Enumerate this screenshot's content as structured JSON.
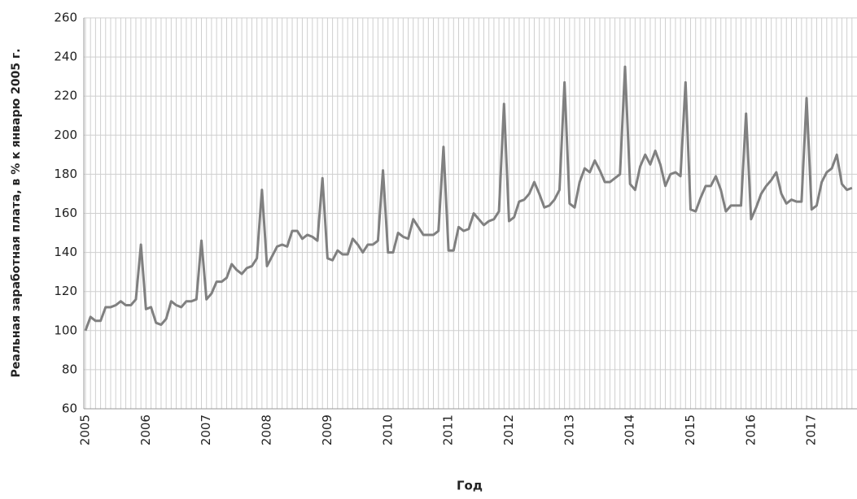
{
  "chart_data": {
    "type": "line",
    "y_label": "Реальная заработная плата, в % к январю 2005 г.",
    "x_label": "Год",
    "categories": [
      "2005",
      null,
      null,
      null,
      null,
      null,
      null,
      null,
      null,
      null,
      null,
      null,
      "2006",
      null,
      null,
      null,
      null,
      null,
      null,
      null,
      null,
      null,
      null,
      null,
      "2007",
      null,
      null,
      null,
      null,
      null,
      null,
      null,
      null,
      null,
      null,
      null,
      "2008",
      null,
      null,
      null,
      null,
      null,
      null,
      null,
      null,
      null,
      null,
      null,
      "2009",
      null,
      null,
      null,
      null,
      null,
      null,
      null,
      null,
      null,
      null,
      null,
      "2010",
      null,
      null,
      null,
      null,
      null,
      null,
      null,
      null,
      null,
      null,
      null,
      "2011",
      null,
      null,
      null,
      null,
      null,
      null,
      null,
      null,
      null,
      null,
      null,
      "2012",
      null,
      null,
      null,
      null,
      null,
      null,
      null,
      null,
      null,
      null,
      null,
      "2013",
      null,
      null,
      null,
      null,
      null,
      null,
      null,
      null,
      null,
      null,
      null,
      "2014",
      null,
      null,
      null,
      null,
      null,
      null,
      null,
      null,
      null,
      null,
      null,
      "2015",
      null,
      null,
      null,
      null,
      null,
      null,
      null,
      null,
      null,
      null,
      null,
      "2016",
      null,
      null,
      null,
      null,
      null,
      null,
      null,
      null,
      null,
      null,
      null,
      "2017",
      null,
      null,
      null,
      null,
      null,
      null,
      null,
      null
    ],
    "values": [
      100,
      107,
      105,
      105,
      112,
      112,
      113,
      115,
      113,
      113,
      116,
      144,
      111,
      112,
      104,
      103,
      106,
      115,
      113,
      112,
      115,
      115,
      116,
      146,
      116,
      119,
      125,
      125,
      127,
      134,
      131,
      129,
      132,
      133,
      137,
      172,
      133,
      138,
      143,
      144,
      143,
      151,
      151,
      147,
      149,
      148,
      146,
      178,
      137,
      136,
      141,
      139,
      139,
      147,
      144,
      140,
      144,
      144,
      146,
      182,
      140,
      140,
      150,
      148,
      147,
      157,
      153,
      149,
      149,
      149,
      151,
      194,
      141,
      141,
      153,
      151,
      152,
      160,
      157,
      154,
      156,
      157,
      161,
      216,
      156,
      158,
      166,
      167,
      170,
      176,
      170,
      163,
      164,
      167,
      172,
      227,
      165,
      163,
      176,
      183,
      181,
      187,
      182,
      176,
      176,
      178,
      180,
      235,
      175,
      172,
      184,
      190,
      185,
      192,
      185,
      174,
      180,
      181,
      179,
      227,
      162,
      161,
      168,
      174,
      174,
      179,
      172,
      161,
      164,
      164,
      164,
      211,
      157,
      163,
      170,
      174,
      177,
      181,
      170,
      165,
      167,
      166,
      166,
      219,
      162,
      164,
      176,
      181,
      183,
      190,
      175,
      172,
      173
    ],
    "color": "#808080",
    "ylim": [
      60,
      260
    ],
    "yticks": [
      60,
      80,
      100,
      120,
      140,
      160,
      180,
      200,
      220,
      240,
      260
    ],
    "grid": true
  }
}
